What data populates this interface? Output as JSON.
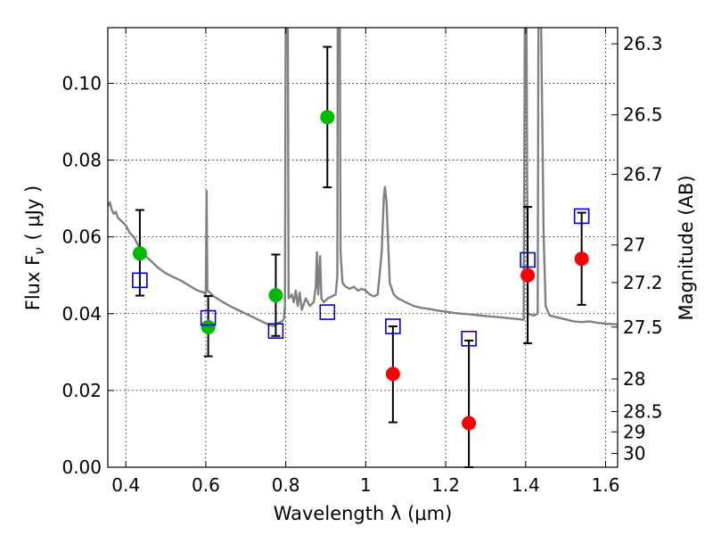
{
  "chart_data": {
    "type": "scatter",
    "xlabel": "Wavelength  λ (μm)",
    "ylabel": "Flux  F",
    "ylabel_subscript": "ν",
    "ylabel_unit": "( μJy )",
    "y2label": "Magnitude (AB)",
    "xlim": [
      0.355,
      1.63
    ],
    "ylim": [
      0.0,
      0.1145
    ],
    "xticks": [
      0.4,
      0.6,
      0.8,
      1.0,
      1.2,
      1.4,
      1.6
    ],
    "xtick_labels": [
      "0.4",
      "0.6",
      "0.8",
      "1",
      "1.2",
      "1.4",
      "1.6"
    ],
    "yticks": [
      0.0,
      0.02,
      0.04,
      0.06,
      0.08,
      0.1
    ],
    "ytick_labels": [
      "0.00",
      "0.02",
      "0.04",
      "0.06",
      "0.08",
      "0.10"
    ],
    "magnitude_ticks": [
      {
        "label": "26.3",
        "flux": 0.1103
      },
      {
        "label": "26.5",
        "flux": 0.0918
      },
      {
        "label": "26.7",
        "flux": 0.0763
      },
      {
        "label": "27",
        "flux": 0.0579
      },
      {
        "label": "27.2",
        "flux": 0.0481
      },
      {
        "label": "27.5",
        "flux": 0.0365
      },
      {
        "label": "28",
        "flux": 0.023
      },
      {
        "label": "28.5",
        "flux": 0.0145
      },
      {
        "label": "29",
        "flux": 0.0092
      },
      {
        "label": "30",
        "flux": 0.0036
      }
    ],
    "grid": true,
    "colors": {
      "detection": "#00bb00",
      "upper_limit": "#ff0000",
      "model_box": "#0000dd",
      "spectrum": "#808080",
      "errorbar": "#000000"
    },
    "observed": [
      {
        "x": 0.435,
        "y": 0.0557,
        "yerr": [
          0.0447,
          0.067
        ],
        "color": "green"
      },
      {
        "x": 0.606,
        "y": 0.0365,
        "yerr": [
          0.0289,
          0.0446
        ],
        "color": "green"
      },
      {
        "x": 0.775,
        "y": 0.0448,
        "yerr": [
          0.0342,
          0.0554
        ],
        "color": "green"
      },
      {
        "x": 0.904,
        "y": 0.0912,
        "yerr": [
          0.0729,
          0.1095
        ],
        "color": "green"
      },
      {
        "x": 1.068,
        "y": 0.0243,
        "yerr": [
          0.0117,
          0.0367
        ],
        "color": "red"
      },
      {
        "x": 1.258,
        "y": 0.0115,
        "yerr": [
          0.0,
          0.033
        ],
        "color": "red"
      },
      {
        "x": 1.405,
        "y": 0.05,
        "yerr": [
          0.0323,
          0.0678
        ],
        "color": "red"
      },
      {
        "x": 1.54,
        "y": 0.0543,
        "yerr": [
          0.0423,
          0.0663
        ],
        "color": "red"
      }
    ],
    "model_photometry": [
      {
        "x": 0.435,
        "y": 0.0487
      },
      {
        "x": 0.606,
        "y": 0.0389
      },
      {
        "x": 0.775,
        "y": 0.0355
      },
      {
        "x": 0.904,
        "y": 0.0404
      },
      {
        "x": 1.068,
        "y": 0.0367
      },
      {
        "x": 1.258,
        "y": 0.0335
      },
      {
        "x": 1.405,
        "y": 0.054
      },
      {
        "x": 1.54,
        "y": 0.0654
      }
    ],
    "spectrum": [
      [
        0.355,
        0.068
      ],
      [
        0.36,
        0.069
      ],
      [
        0.365,
        0.067
      ],
      [
        0.37,
        0.066
      ],
      [
        0.375,
        0.0665
      ],
      [
        0.38,
        0.065
      ],
      [
        0.39,
        0.064
      ],
      [
        0.4,
        0.063
      ],
      [
        0.41,
        0.061
      ],
      [
        0.42,
        0.06
      ],
      [
        0.43,
        0.058
      ],
      [
        0.44,
        0.056
      ],
      [
        0.45,
        0.055
      ],
      [
        0.46,
        0.054
      ],
      [
        0.47,
        0.053
      ],
      [
        0.48,
        0.052
      ],
      [
        0.5,
        0.0505
      ],
      [
        0.52,
        0.0495
      ],
      [
        0.54,
        0.0485
      ],
      [
        0.56,
        0.0472
      ],
      [
        0.58,
        0.046
      ],
      [
        0.595,
        0.0455
      ],
      [
        0.6,
        0.045
      ],
      [
        0.602,
        0.072
      ],
      [
        0.604,
        0.046
      ],
      [
        0.62,
        0.0445
      ],
      [
        0.64,
        0.0432
      ],
      [
        0.66,
        0.042
      ],
      [
        0.68,
        0.041
      ],
      [
        0.7,
        0.04
      ],
      [
        0.72,
        0.039
      ],
      [
        0.74,
        0.038
      ],
      [
        0.76,
        0.037
      ],
      [
        0.77,
        0.0368
      ],
      [
        0.78,
        0.0375
      ],
      [
        0.79,
        0.038
      ],
      [
        0.795,
        0.0385
      ],
      [
        0.798,
        0.042
      ],
      [
        0.8,
        0.12
      ],
      [
        0.805,
        0.12
      ],
      [
        0.807,
        0.044
      ],
      [
        0.815,
        0.045
      ],
      [
        0.82,
        0.043
      ],
      [
        0.825,
        0.046
      ],
      [
        0.83,
        0.042
      ],
      [
        0.835,
        0.0455
      ],
      [
        0.84,
        0.041
      ],
      [
        0.85,
        0.044
      ],
      [
        0.86,
        0.042
      ],
      [
        0.87,
        0.043
      ],
      [
        0.875,
        0.047
      ],
      [
        0.878,
        0.056
      ],
      [
        0.881,
        0.045
      ],
      [
        0.886,
        0.055
      ],
      [
        0.889,
        0.044
      ],
      [
        0.895,
        0.043
      ],
      [
        0.905,
        0.044
      ],
      [
        0.915,
        0.0445
      ],
      [
        0.925,
        0.045
      ],
      [
        0.929,
        0.05
      ],
      [
        0.93,
        0.12
      ],
      [
        0.935,
        0.12
      ],
      [
        0.937,
        0.056
      ],
      [
        0.942,
        0.048
      ],
      [
        0.95,
        0.047
      ],
      [
        0.96,
        0.0465
      ],
      [
        0.97,
        0.047
      ],
      [
        0.98,
        0.046
      ],
      [
        0.99,
        0.0465
      ],
      [
        1.0,
        0.046
      ],
      [
        1.01,
        0.045
      ],
      [
        1.02,
        0.0445
      ],
      [
        1.03,
        0.045
      ],
      [
        1.04,
        0.056
      ],
      [
        1.045,
        0.07
      ],
      [
        1.048,
        0.073
      ],
      [
        1.052,
        0.069
      ],
      [
        1.06,
        0.048
      ],
      [
        1.07,
        0.045
      ],
      [
        1.08,
        0.044
      ],
      [
        1.1,
        0.043
      ],
      [
        1.12,
        0.042
      ],
      [
        1.14,
        0.0415
      ],
      [
        1.16,
        0.0412
      ],
      [
        1.18,
        0.0408
      ],
      [
        1.2,
        0.0405
      ],
      [
        1.22,
        0.0402
      ],
      [
        1.24,
        0.04
      ],
      [
        1.26,
        0.0398
      ],
      [
        1.28,
        0.0396
      ],
      [
        1.3,
        0.0394
      ],
      [
        1.32,
        0.0392
      ],
      [
        1.34,
        0.039
      ],
      [
        1.36,
        0.0388
      ],
      [
        1.38,
        0.0386
      ],
      [
        1.395,
        0.0384
      ],
      [
        1.398,
        0.12
      ],
      [
        1.402,
        0.12
      ],
      [
        1.405,
        0.04
      ],
      [
        1.42,
        0.0395
      ],
      [
        1.43,
        0.04
      ],
      [
        1.432,
        0.12
      ],
      [
        1.438,
        0.12
      ],
      [
        1.445,
        0.06
      ],
      [
        1.45,
        0.042
      ],
      [
        1.46,
        0.0395
      ],
      [
        1.48,
        0.039
      ],
      [
        1.5,
        0.0385
      ],
      [
        1.52,
        0.038
      ],
      [
        1.54,
        0.0378
      ],
      [
        1.56,
        0.038
      ],
      [
        1.58,
        0.0376
      ],
      [
        1.6,
        0.0374
      ],
      [
        1.63,
        0.0372
      ]
    ]
  }
}
